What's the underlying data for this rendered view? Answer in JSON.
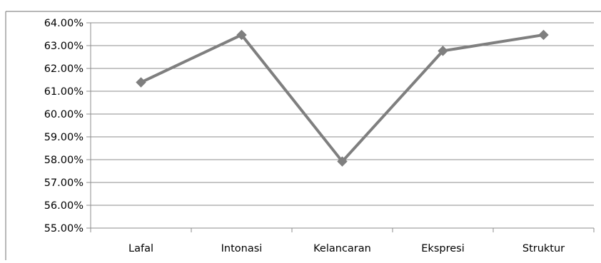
{
  "chart_data": {
    "type": "line",
    "categories": [
      "Lafal",
      "Intonasi",
      "Kelancaran",
      "Ekspresi",
      "Struktur"
    ],
    "series": [
      {
        "values": [
          61.39,
          63.47,
          57.92,
          62.77,
          63.47
        ],
        "color": "#7f7f7f",
        "marker": "diamond"
      }
    ],
    "y_tick_labels": [
      "55.00%",
      "56.00%",
      "57.00%",
      "58.00%",
      "59.00%",
      "60.00%",
      "61.00%",
      "62.00%",
      "63.00%",
      "64.00%"
    ],
    "ylim": [
      55,
      64
    ],
    "ytick_step": 1,
    "grid": true,
    "legend": "none",
    "title": "",
    "xlabel": "",
    "ylabel": ""
  }
}
